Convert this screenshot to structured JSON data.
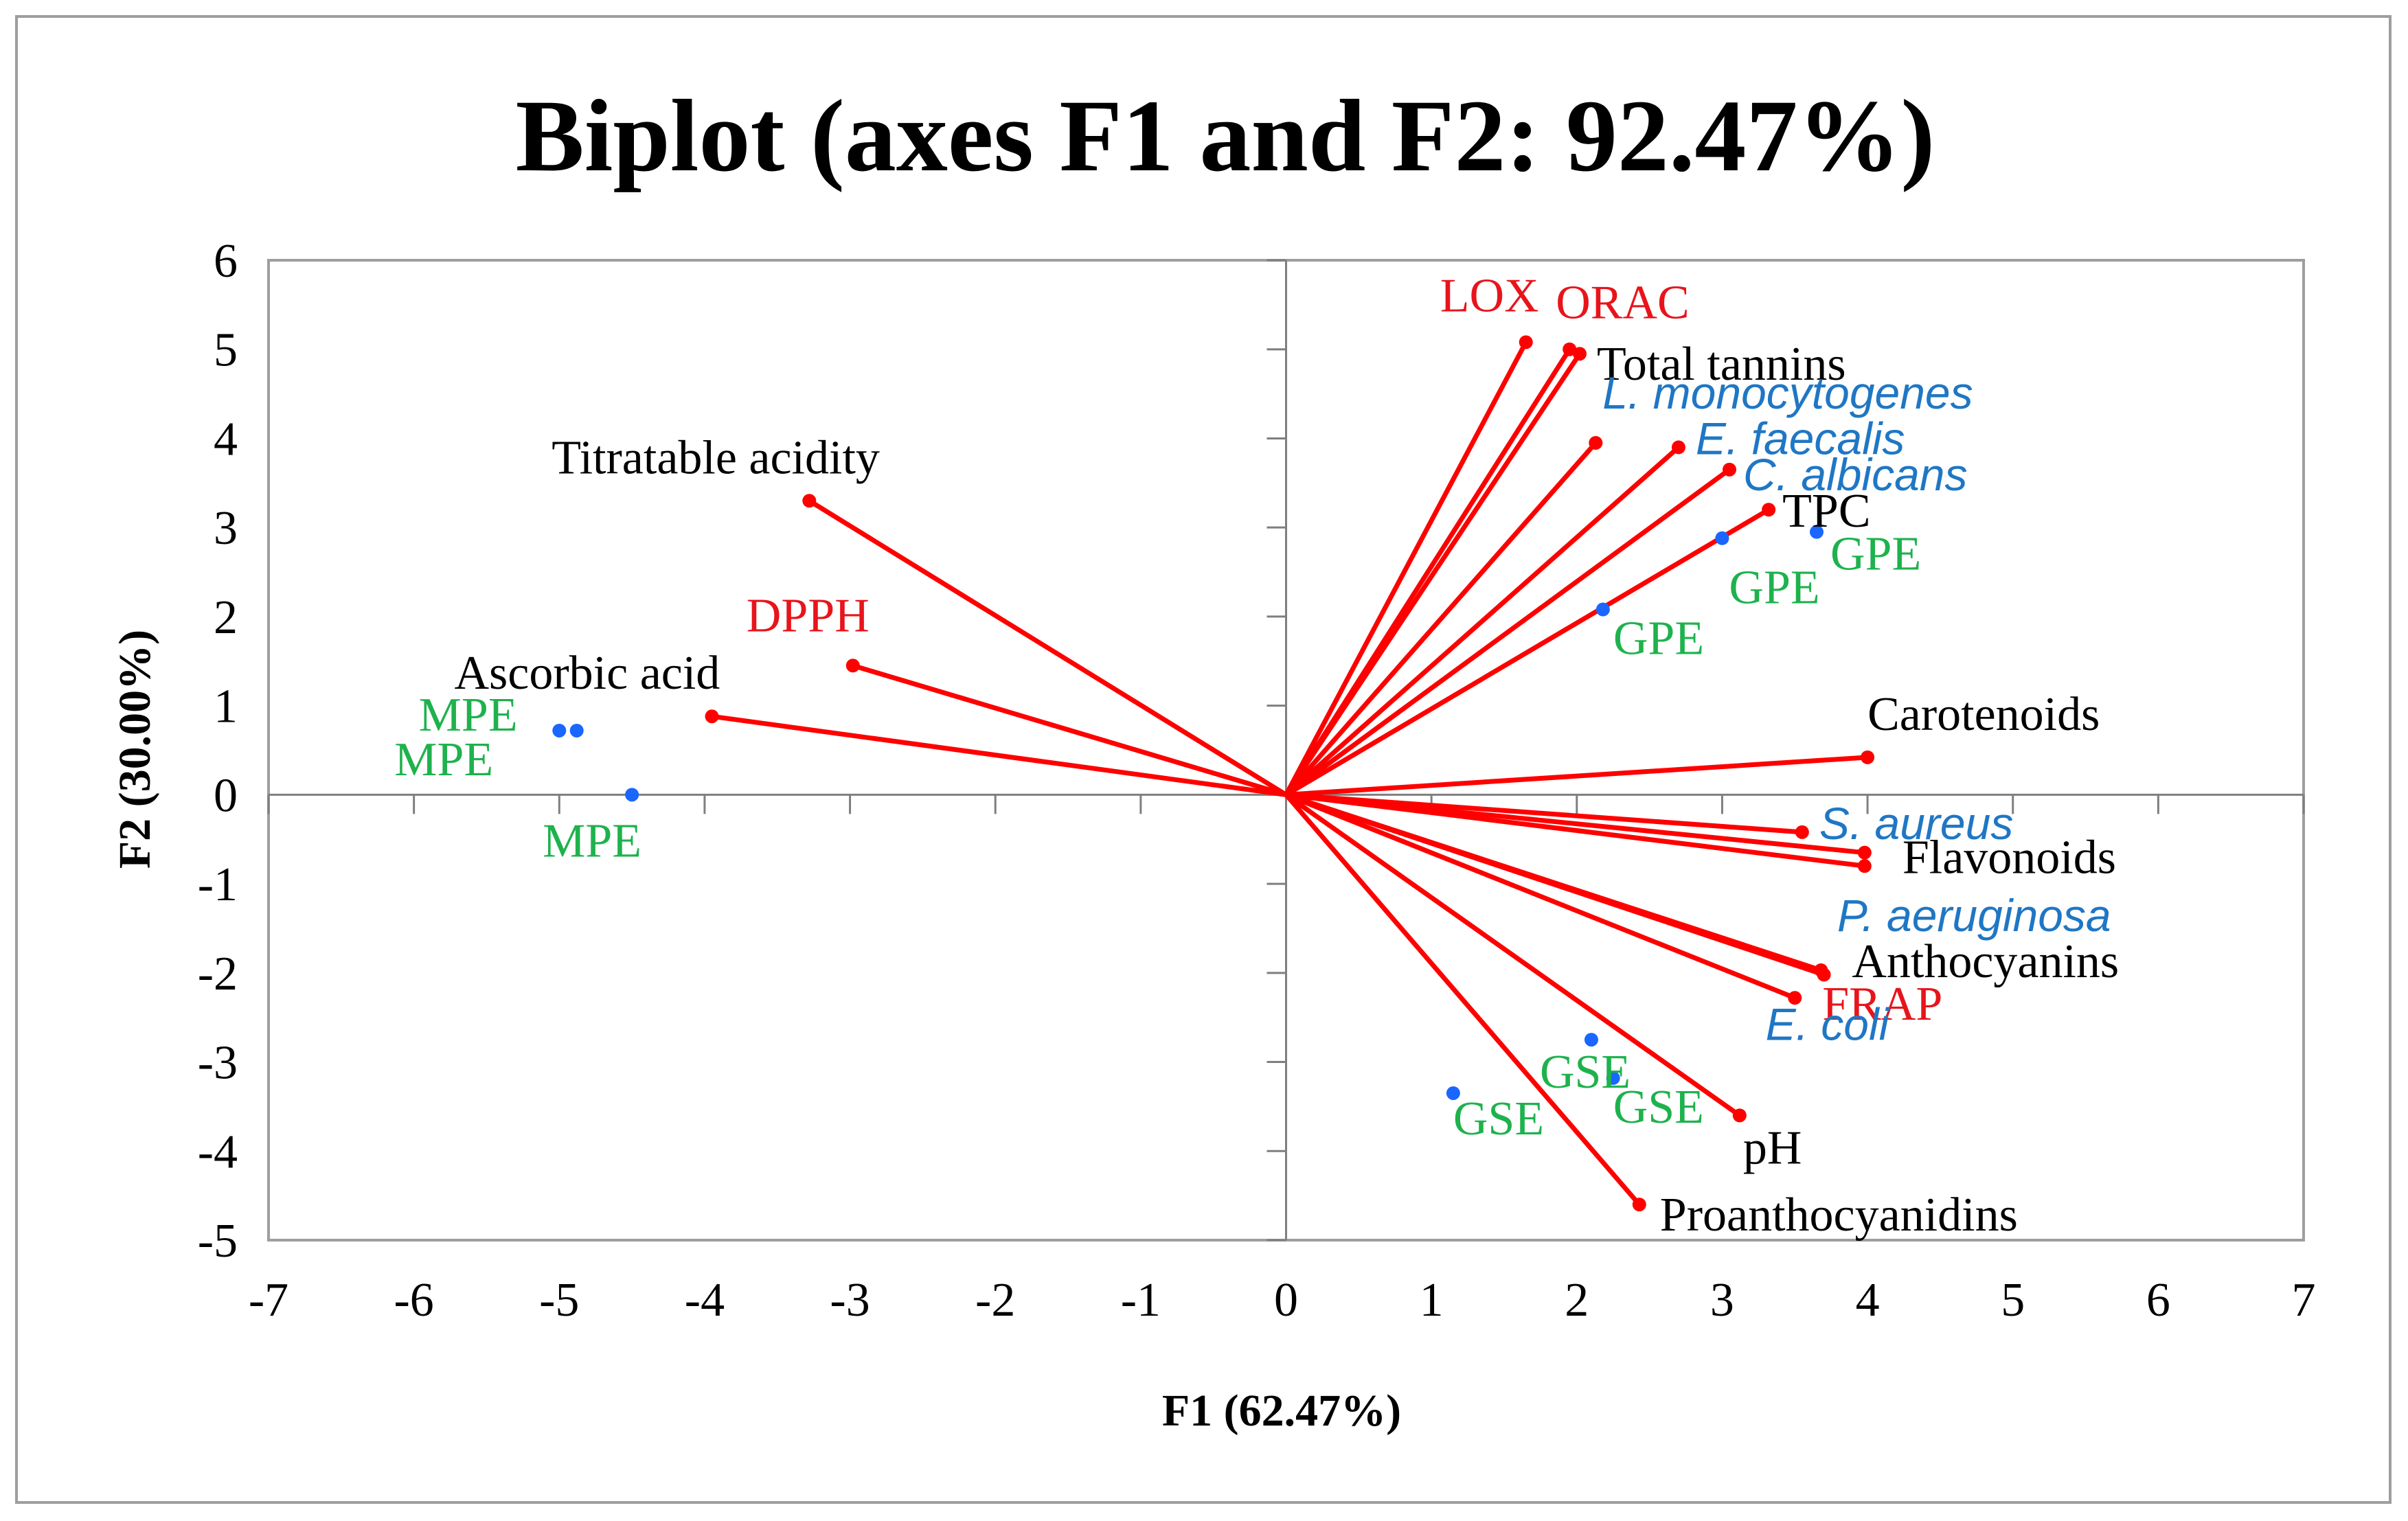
{
  "colors": {
    "vector": "#ff0000",
    "observation_point": "#1a66ff",
    "black_label": "#000000",
    "red_label": "#e8141b",
    "blue_label": "#1f77c4",
    "green_label": "#1eb24d",
    "plot_border": "#9e9e9e",
    "axis_line": "#7f7f7f"
  },
  "chart_data": {
    "type": "scatter",
    "subtype": "biplot",
    "title": "Biplot (axes F1 and F2: 92.47%)",
    "xlabel": "F1 (62.47%)",
    "ylabel": "F2 (30.00%)",
    "xlim": [
      -7,
      7
    ],
    "ylim": [
      -5,
      6
    ],
    "xticks": [
      "-7",
      "-6",
      "-5",
      "-4",
      "-3",
      "-2",
      "-1",
      "0",
      "1",
      "2",
      "3",
      "4",
      "5",
      "6",
      "7"
    ],
    "yticks": [
      "-5",
      "-4",
      "-3",
      "-2",
      "-1",
      "0",
      "1",
      "2",
      "3",
      "4",
      "5",
      "6"
    ],
    "grid": false,
    "variables": [
      {
        "label": "LOX",
        "x": 1.65,
        "y": 5.08,
        "color": "red",
        "italic": false
      },
      {
        "label": "ORAC",
        "x": 1.95,
        "y": 5.0,
        "color": "red",
        "italic": false
      },
      {
        "label": "Total tannins",
        "x": 2.02,
        "y": 4.95,
        "color": "black",
        "italic": false
      },
      {
        "label": "L. monocytogenes",
        "x": 2.13,
        "y": 3.95,
        "color": "blue",
        "italic": true
      },
      {
        "label": "E. faecalis",
        "x": 2.7,
        "y": 3.9,
        "color": "blue",
        "italic": true
      },
      {
        "label": "C. albicans",
        "x": 3.05,
        "y": 3.65,
        "color": "blue",
        "italic": true
      },
      {
        "label": "TPC",
        "x": 3.32,
        "y": 3.2,
        "color": "black",
        "italic": false
      },
      {
        "label": "Titratable acidity",
        "x": -3.28,
        "y": 3.3,
        "color": "black",
        "italic": false
      },
      {
        "label": "DPPH",
        "x": -2.98,
        "y": 1.45,
        "color": "red",
        "italic": false
      },
      {
        "label": "Ascorbic acid",
        "x": -3.95,
        "y": 0.88,
        "color": "black",
        "italic": false
      },
      {
        "label": "Carotenoids",
        "x": 4.0,
        "y": 0.42,
        "color": "black",
        "italic": false
      },
      {
        "label": "S. aureus",
        "x": 3.55,
        "y": -0.42,
        "color": "blue",
        "italic": true
      },
      {
        "label": "Flavonoids",
        "x": 3.98,
        "y": -0.65,
        "color": "black",
        "italic": false
      },
      {
        "label": "P. aeruginosa",
        "x": 3.98,
        "y": -0.8,
        "color": "blue",
        "italic": true
      },
      {
        "label": "Anthocyanins",
        "x": 3.68,
        "y": -1.97,
        "color": "black",
        "italic": false
      },
      {
        "label": "FRAP",
        "x": 3.5,
        "y": -2.28,
        "color": "red",
        "italic": false
      },
      {
        "label": "E. coli",
        "x": 3.7,
        "y": -2.02,
        "color": "blue",
        "italic": true
      },
      {
        "label": "pH",
        "x": 3.12,
        "y": -3.6,
        "color": "black",
        "italic": false
      },
      {
        "label": "Proanthocyanidins",
        "x": 2.43,
        "y": -4.6,
        "color": "black",
        "italic": false
      }
    ],
    "observations": [
      {
        "label": "GPE",
        "x": 3.65,
        "y": 2.95
      },
      {
        "label": "GPE",
        "x": 3.0,
        "y": 2.88
      },
      {
        "label": "GPE",
        "x": 2.18,
        "y": 2.08
      },
      {
        "label": "MPE",
        "x": -4.88,
        "y": 0.72
      },
      {
        "label": "MPE",
        "x": -5.0,
        "y": 0.72
      },
      {
        "label": "MPE",
        "x": -4.5,
        "y": 0.0
      },
      {
        "label": "GSE",
        "x": 2.1,
        "y": -2.75
      },
      {
        "label": "GSE",
        "x": 2.25,
        "y": -3.18
      },
      {
        "label": "GSE",
        "x": 1.15,
        "y": -3.35
      }
    ]
  }
}
